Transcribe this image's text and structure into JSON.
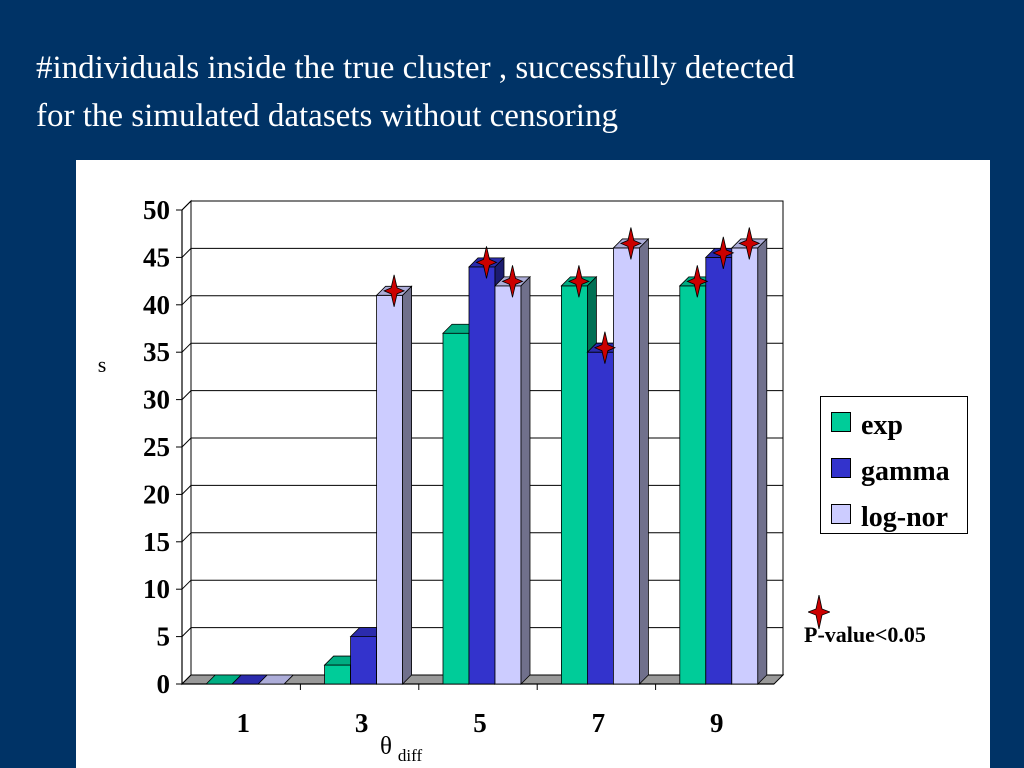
{
  "slide": {
    "title_line1": "#individuals inside the true cluster , successfully detected",
    "title_line2": "for the simulated datasets without censoring"
  },
  "chart_data": {
    "type": "bar",
    "categories": [
      "1",
      "3",
      "5",
      "7",
      "9"
    ],
    "series": [
      {
        "name": "exp",
        "values": [
          0,
          2,
          37,
          42,
          42
        ],
        "color": "#00cc99",
        "significant": [
          false,
          false,
          false,
          true,
          true
        ]
      },
      {
        "name": "gamma",
        "values": [
          0,
          5,
          44,
          35,
          45
        ],
        "color": "#3333cc",
        "significant": [
          false,
          false,
          true,
          true,
          true
        ]
      },
      {
        "name": "log-nor",
        "values": [
          0,
          41,
          42,
          46,
          46
        ],
        "color": "#ccccff",
        "significant": [
          false,
          true,
          true,
          true,
          true
        ]
      }
    ],
    "ylim": [
      0,
      50
    ],
    "yticks": [
      0,
      5,
      10,
      15,
      20,
      25,
      30,
      35,
      40,
      45,
      50
    ],
    "ylabel": "s",
    "xlabel_main": "θ",
    "xlabel_sub": "diff",
    "grid": true,
    "legend_position": "right",
    "annotation": "P-value<0.05",
    "marker_color": "#cc0000"
  }
}
